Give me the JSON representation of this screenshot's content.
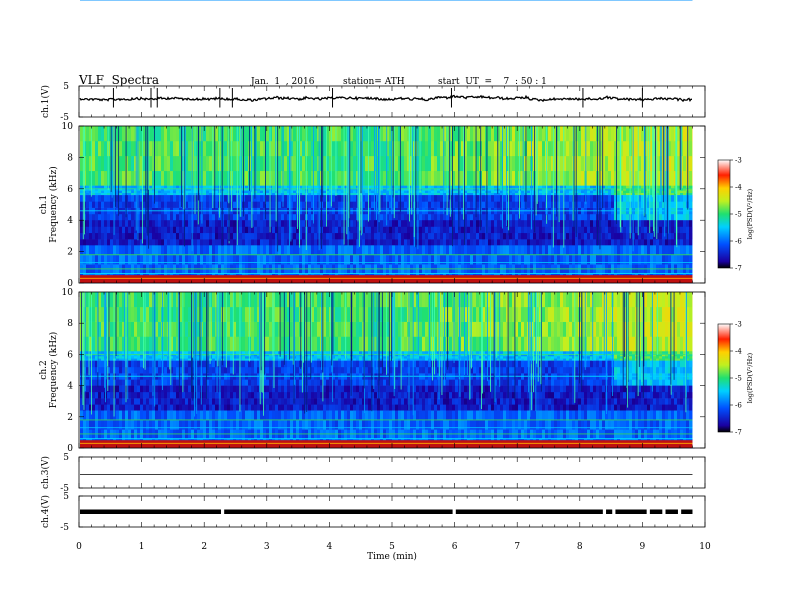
{
  "header": {
    "title": "VLF  Spectra",
    "date": "Jan.  1  , 2016",
    "station": "station= ATH",
    "start": "start  UT  =    7  : 50 : 1"
  },
  "chart_data": [
    {
      "type": "line",
      "name": "ch1-waveform",
      "ylabel": "ch.1(V)",
      "ylim": [
        -5,
        5
      ],
      "yticks": [
        "5",
        "-5"
      ],
      "xlim": [
        0,
        10
      ],
      "baseline": 0,
      "spikes_min": [
        0.55,
        1.15,
        1.25,
        2.25,
        2.45,
        4.05,
        5.95,
        8.05,
        9.0
      ]
    },
    {
      "type": "heatmap",
      "name": "ch1-spectrogram",
      "ylabel": "ch.1\nFrequency  (kHz)",
      "ylim": [
        0,
        10
      ],
      "yticks": [
        "0",
        "2",
        "4",
        "6",
        "8",
        "10"
      ],
      "xlim": [
        0,
        10
      ],
      "data_end_min": 9.8,
      "colorbar": {
        "label": "log(PSD(V²/Hz)",
        "range": [
          -7,
          -3
        ],
        "ticks": [
          "-3",
          "-4",
          "-5",
          "-6",
          "-7"
        ]
      }
    },
    {
      "type": "heatmap",
      "name": "ch2-spectrogram",
      "ylabel": "ch.2\nFrequency  (kHz)",
      "ylim": [
        0,
        10
      ],
      "yticks": [
        "0",
        "2",
        "4",
        "6",
        "8",
        "10"
      ],
      "xlim": [
        0,
        10
      ],
      "data_end_min": 9.8,
      "colorbar": {
        "label": "log(PSD(V²/Hz)",
        "range": [
          -7,
          -3
        ],
        "ticks": [
          "-3",
          "-4",
          "-5",
          "-6",
          "-7"
        ]
      }
    },
    {
      "type": "line",
      "name": "ch3-waveform",
      "ylabel": "ch.3(V)",
      "ylim": [
        -5,
        5
      ],
      "yticks": [
        "5",
        "-5"
      ],
      "xlim": [
        0,
        10
      ],
      "baseline": 0
    },
    {
      "type": "line",
      "name": "ch4-waveform",
      "ylabel": "ch.4(V)",
      "ylim": [
        -5,
        5
      ],
      "yticks": [
        "5",
        "-5"
      ],
      "xlim": [
        0,
        10
      ],
      "baseline": 0,
      "gaps_min": [
        2.3,
        6.0,
        8.4,
        8.55,
        9.1,
        9.35,
        9.6
      ]
    }
  ],
  "xaxis": {
    "label": "Time  (min)",
    "ticks": [
      "0",
      "1",
      "2",
      "3",
      "4",
      "5",
      "6",
      "7",
      "8",
      "9",
      "10"
    ]
  }
}
